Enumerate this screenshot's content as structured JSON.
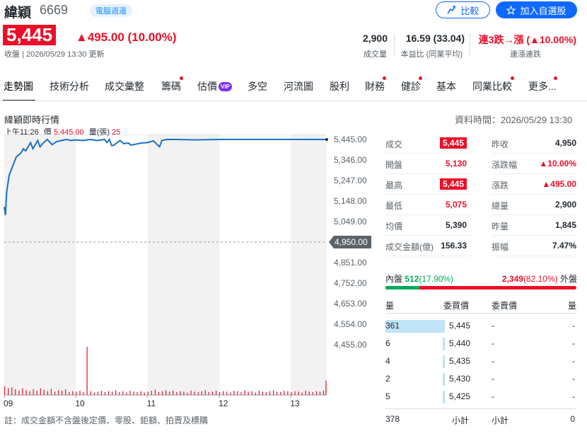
{
  "header": {
    "name": "緯穎",
    "code": "6669",
    "badge": "電腦週邊",
    "compare_label": "比較",
    "watch_label": "加入自選股",
    "price": "5,445",
    "change": "▲495.00 (10.00%)",
    "status": "收盤 | 2026/05/29 13:30 更新",
    "stats": [
      {
        "value": "2,900",
        "label": "成交量"
      },
      {
        "value": "16.59 (33.04)",
        "label": "本益比 (同業平均)"
      },
      {
        "value": "連3跌→漲 (▲10.00%)",
        "label": "連漲連跌"
      }
    ]
  },
  "tabs": [
    "走勢圖",
    "技術分析",
    "成交彙整",
    "籌碼",
    "估價",
    "多空",
    "河流圖",
    "股利",
    "財務",
    "健診",
    "基本",
    "同業比較",
    "更多..."
  ],
  "vip_label": "VIP",
  "section": {
    "title": "緯穎即時行情",
    "data_time": "資料時間：2026/05/29 13:30",
    "info_time": "上午11:26",
    "info_price_label": "價",
    "info_price": "5,445.00",
    "info_vol_label": "量(張)",
    "info_vol": "25"
  },
  "chart_data": {
    "type": "line",
    "y_ticks": [
      "5,445.00",
      "5,346.00",
      "5,247.00",
      "5,148.00",
      "5,049.00",
      "4,950.00",
      "4,851.00",
      "4,752.00",
      "4,653.00",
      "4,554.00",
      "4,455.00"
    ],
    "y_tick_values": [
      5445,
      5346,
      5247,
      5148,
      5049,
      4950,
      4851,
      4752,
      4653,
      4554,
      4455
    ],
    "ylim": [
      4455,
      5445
    ],
    "ref_price": 4950,
    "x_ticks": [
      "09",
      "10",
      "11",
      "12",
      "13"
    ],
    "x_tick_minutes": [
      0,
      60,
      120,
      180,
      240
    ],
    "x_max_minutes": 270,
    "price_series": [
      [
        0,
        5120
      ],
      [
        1,
        5080
      ],
      [
        2,
        5190
      ],
      [
        3,
        5230
      ],
      [
        4,
        5270
      ],
      [
        6,
        5300
      ],
      [
        8,
        5330
      ],
      [
        10,
        5360
      ],
      [
        12,
        5370
      ],
      [
        14,
        5380
      ],
      [
        16,
        5400
      ],
      [
        18,
        5390
      ],
      [
        20,
        5410
      ],
      [
        22,
        5430
      ],
      [
        24,
        5400
      ],
      [
        26,
        5420
      ],
      [
        28,
        5440
      ],
      [
        30,
        5410
      ],
      [
        33,
        5430
      ],
      [
        36,
        5445
      ],
      [
        40,
        5420
      ],
      [
        44,
        5435
      ],
      [
        48,
        5440
      ],
      [
        52,
        5445
      ],
      [
        56,
        5440
      ],
      [
        60,
        5443
      ],
      [
        66,
        5440
      ],
      [
        72,
        5445
      ],
      [
        78,
        5440
      ],
      [
        84,
        5445
      ],
      [
        86,
        5430
      ],
      [
        88,
        5445
      ],
      [
        90,
        5415
      ],
      [
        92,
        5418
      ],
      [
        94,
        5428
      ],
      [
        97,
        5440
      ],
      [
        100,
        5425
      ],
      [
        104,
        5428
      ],
      [
        106,
        5418
      ],
      [
        110,
        5422
      ],
      [
        115,
        5428
      ],
      [
        120,
        5430
      ],
      [
        125,
        5438
      ],
      [
        128,
        5420
      ],
      [
        130,
        5410
      ],
      [
        132,
        5440
      ],
      [
        136,
        5445
      ],
      [
        145,
        5445
      ],
      [
        160,
        5443
      ],
      [
        180,
        5445
      ],
      [
        200,
        5445
      ],
      [
        230,
        5445
      ],
      [
        260,
        5445
      ],
      [
        270,
        5445
      ]
    ],
    "volume_series": [
      [
        0,
        18
      ],
      [
        3,
        14
      ],
      [
        6,
        16
      ],
      [
        9,
        12
      ],
      [
        12,
        9
      ],
      [
        15,
        14
      ],
      [
        18,
        10
      ],
      [
        21,
        8
      ],
      [
        24,
        12
      ],
      [
        27,
        9
      ],
      [
        30,
        14
      ],
      [
        33,
        11
      ],
      [
        36,
        8
      ],
      [
        39,
        13
      ],
      [
        42,
        7
      ],
      [
        45,
        10
      ],
      [
        48,
        9
      ],
      [
        51,
        12
      ],
      [
        54,
        6
      ],
      [
        57,
        8
      ],
      [
        60,
        7
      ],
      [
        63,
        9
      ],
      [
        66,
        6
      ],
      [
        69,
        100
      ],
      [
        72,
        8
      ],
      [
        75,
        5
      ],
      [
        78,
        7
      ],
      [
        81,
        9
      ],
      [
        84,
        6
      ],
      [
        87,
        8
      ],
      [
        90,
        7
      ],
      [
        93,
        10
      ],
      [
        96,
        6
      ],
      [
        99,
        8
      ],
      [
        102,
        5
      ],
      [
        105,
        9
      ],
      [
        108,
        7
      ],
      [
        111,
        6
      ],
      [
        114,
        8
      ],
      [
        117,
        5
      ],
      [
        120,
        7
      ],
      [
        123,
        9
      ],
      [
        126,
        11
      ],
      [
        129,
        6
      ],
      [
        132,
        8
      ],
      [
        135,
        10
      ],
      [
        138,
        7
      ],
      [
        141,
        9
      ],
      [
        144,
        6
      ],
      [
        147,
        8
      ],
      [
        150,
        7
      ],
      [
        153,
        5
      ],
      [
        156,
        9
      ],
      [
        159,
        7
      ],
      [
        162,
        6
      ],
      [
        165,
        8
      ],
      [
        168,
        10
      ],
      [
        171,
        6
      ],
      [
        174,
        7
      ],
      [
        177,
        9
      ],
      [
        180,
        6
      ],
      [
        183,
        8
      ],
      [
        186,
        7
      ],
      [
        189,
        5
      ],
      [
        192,
        9
      ],
      [
        195,
        8
      ],
      [
        198,
        6
      ],
      [
        201,
        10
      ],
      [
        204,
        7
      ],
      [
        207,
        8
      ],
      [
        210,
        5
      ],
      [
        213,
        9
      ],
      [
        216,
        7
      ],
      [
        219,
        6
      ],
      [
        222,
        8
      ],
      [
        225,
        10
      ],
      [
        228,
        7
      ],
      [
        231,
        6
      ],
      [
        234,
        9
      ],
      [
        237,
        8
      ],
      [
        240,
        6
      ],
      [
        243,
        8
      ],
      [
        246,
        7
      ],
      [
        249,
        5
      ],
      [
        252,
        9
      ],
      [
        255,
        7
      ],
      [
        258,
        6
      ],
      [
        261,
        8
      ],
      [
        264,
        7
      ],
      [
        267,
        9
      ],
      [
        269,
        30
      ]
    ]
  },
  "quote_table": {
    "left": [
      {
        "label": "成交",
        "value": "5,445",
        "boxed": true
      },
      {
        "label": "開盤",
        "value": "5,130",
        "boxed": false
      },
      {
        "label": "最高",
        "value": "5,445",
        "boxed": true
      },
      {
        "label": "最低",
        "value": "5,075",
        "boxed": false
      },
      {
        "label": "均價",
        "value": "5,390",
        "boxed": false
      },
      {
        "label": "成交金額(億)",
        "value": "156.33",
        "boxed": false
      }
    ],
    "right": [
      {
        "label": "昨收",
        "value": "4,950"
      },
      {
        "label": "漲跌幅",
        "value": "▲10.00%"
      },
      {
        "label": "漲跌",
        "value": "▲495.00"
      },
      {
        "label": "總量",
        "value": "2,900"
      },
      {
        "label": "昨量",
        "value": "1,845"
      },
      {
        "label": "振幅",
        "value": "7.47%"
      }
    ]
  },
  "inner_outer": {
    "inner_label": "內盤",
    "inner_value": "512",
    "inner_pct": "(17.90%)",
    "inner_fraction": 0.179,
    "outer_value": "2,349",
    "outer_pct": "(82.10%)",
    "outer_label": "外盤"
  },
  "order_book": {
    "headers": [
      "量",
      "委買價",
      "委賣價",
      "量"
    ],
    "rows": [
      {
        "bid_qty": "361",
        "bid_price": "5,445",
        "ask_price": "-",
        "ask_qty": "-",
        "bid_fraction": 1.0
      },
      {
        "bid_qty": "6",
        "bid_price": "5,440",
        "ask_price": "-",
        "ask_qty": "-",
        "bid_fraction": 0.02
      },
      {
        "bid_qty": "4",
        "bid_price": "5,435",
        "ask_price": "-",
        "ask_qty": "-",
        "bid_fraction": 0.01
      },
      {
        "bid_qty": "2",
        "bid_price": "5,430",
        "ask_price": "-",
        "ask_qty": "-",
        "bid_fraction": 0.01
      },
      {
        "bid_qty": "5",
        "bid_price": "5,425",
        "ask_price": "-",
        "ask_qty": "-",
        "bid_fraction": 0.01
      }
    ],
    "bid_total": "378",
    "bid_total_label": "小計",
    "ask_total_label": "小計",
    "ask_total": "0"
  },
  "footnote": "註：成交金額不含盤後定價、零股、鉅額、拍賣及標購",
  "colors": {
    "up": "#eb0f29",
    "down": "#00ab5e",
    "line": "#1a6fc4",
    "accent": "#0f69ff"
  }
}
